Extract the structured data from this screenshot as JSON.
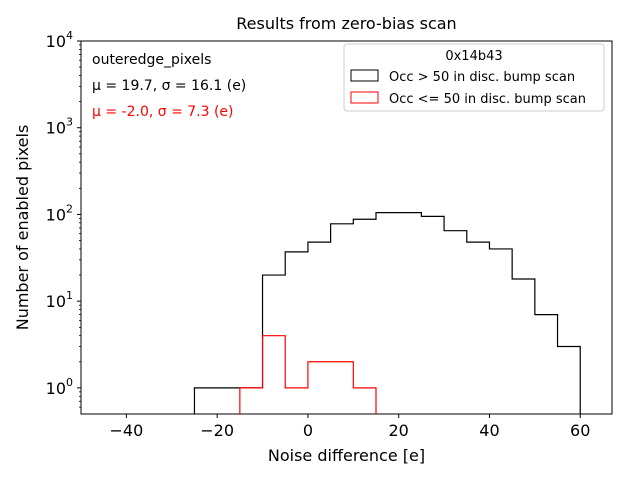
{
  "chart_data": {
    "type": "histogram",
    "title": "Results from zero-bias scan",
    "xlabel": "Noise difference [e]",
    "ylabel": "Number of enabled pixels",
    "xlim": [
      -50,
      67
    ],
    "ylim_log": [
      0.5,
      10000
    ],
    "y_scale": "log",
    "x_ticks": [
      -40,
      -20,
      0,
      20,
      40,
      60
    ],
    "x_tick_labels": [
      "−40",
      "−20",
      "0",
      "20",
      "40",
      "60"
    ],
    "y_tick_labels": [
      "10^0",
      "10^1",
      "10^2",
      "10^3",
      "10^4"
    ],
    "annotations": {
      "pixel_group": "outeredge_pixels",
      "black_stats": "μ = 19.7, σ = 16.1 (e)",
      "red_stats": "μ = -2.0, σ = 7.3 (e)"
    },
    "legend": {
      "title": "0x14b43",
      "placement": "top-right"
    },
    "series": [
      {
        "name": "Occ > 50 in disc. bump scan",
        "color": "#000000",
        "bin_edges": [
          -25,
          -20,
          -15,
          -10,
          -5,
          0,
          5,
          10,
          15,
          20,
          25,
          30,
          35,
          40,
          45,
          50,
          55,
          60
        ],
        "values": [
          1,
          1,
          1,
          20,
          37,
          48,
          78,
          88,
          105,
          105,
          95,
          65,
          48,
          40,
          18,
          7,
          3
        ]
      },
      {
        "name": "Occ <= 50 in disc. bump scan",
        "color": "#ff0000",
        "bin_edges": [
          -15,
          -10,
          -5,
          0,
          5,
          10,
          15
        ],
        "values": [
          1,
          4,
          1,
          2,
          2,
          1
        ]
      }
    ]
  }
}
